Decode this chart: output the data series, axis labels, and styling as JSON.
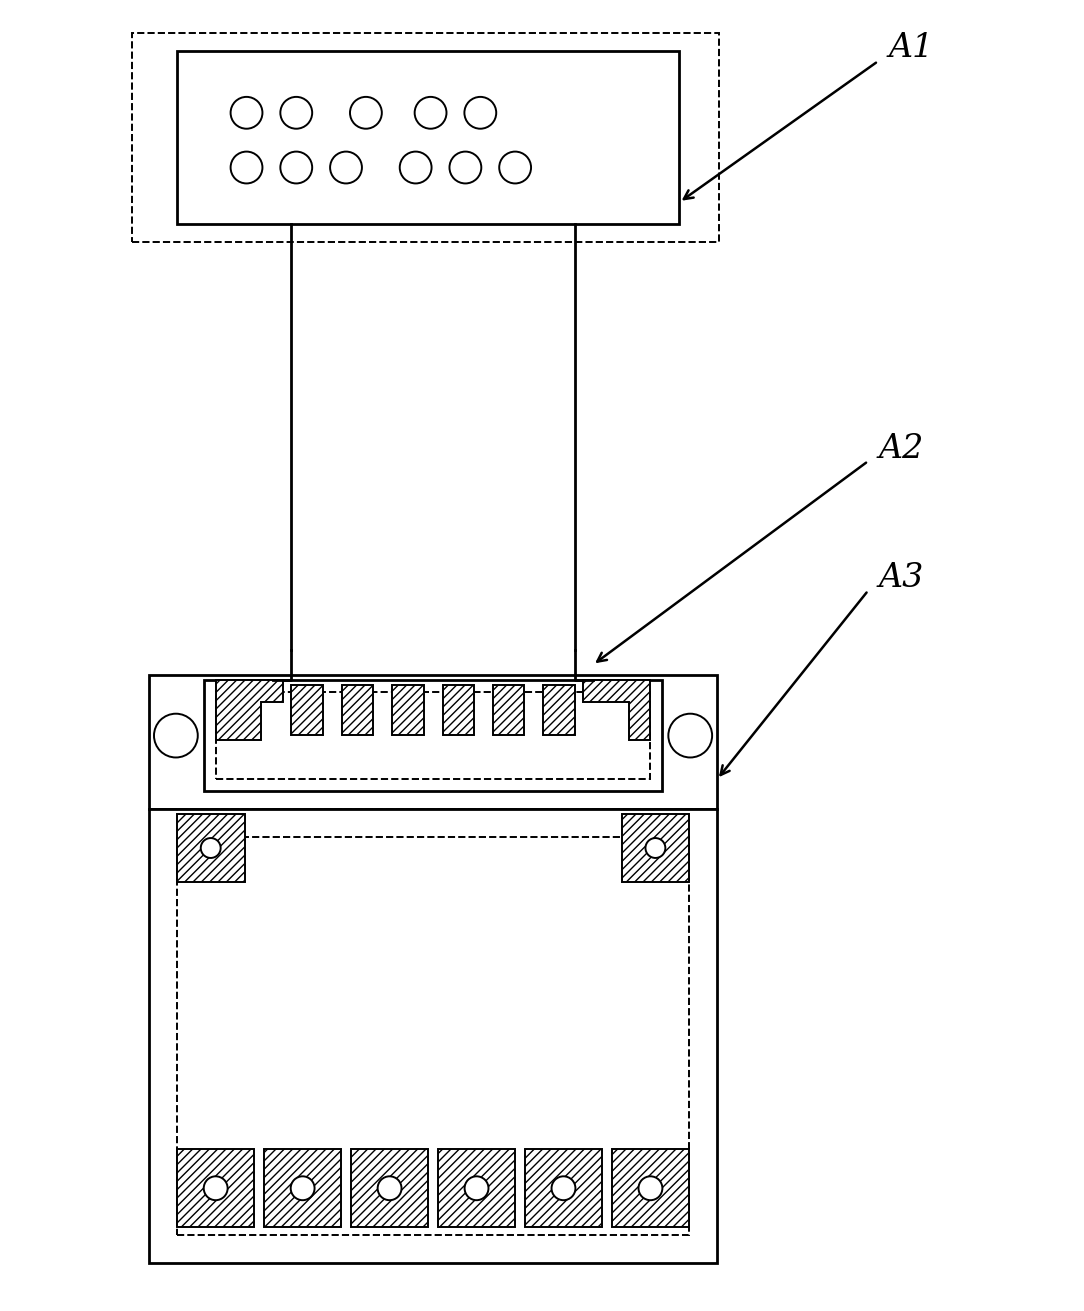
{
  "bg_color": "#ffffff",
  "lc": "#000000",
  "fig_w": 10.84,
  "fig_h": 13.11,
  "dpi": 100,
  "lw_main": 2.0,
  "lw_thin": 1.4,
  "hatch": "////",
  "A1_label": "A1",
  "A2_label": "A2",
  "A3_label": "A3",
  "label_fontsize": 24
}
